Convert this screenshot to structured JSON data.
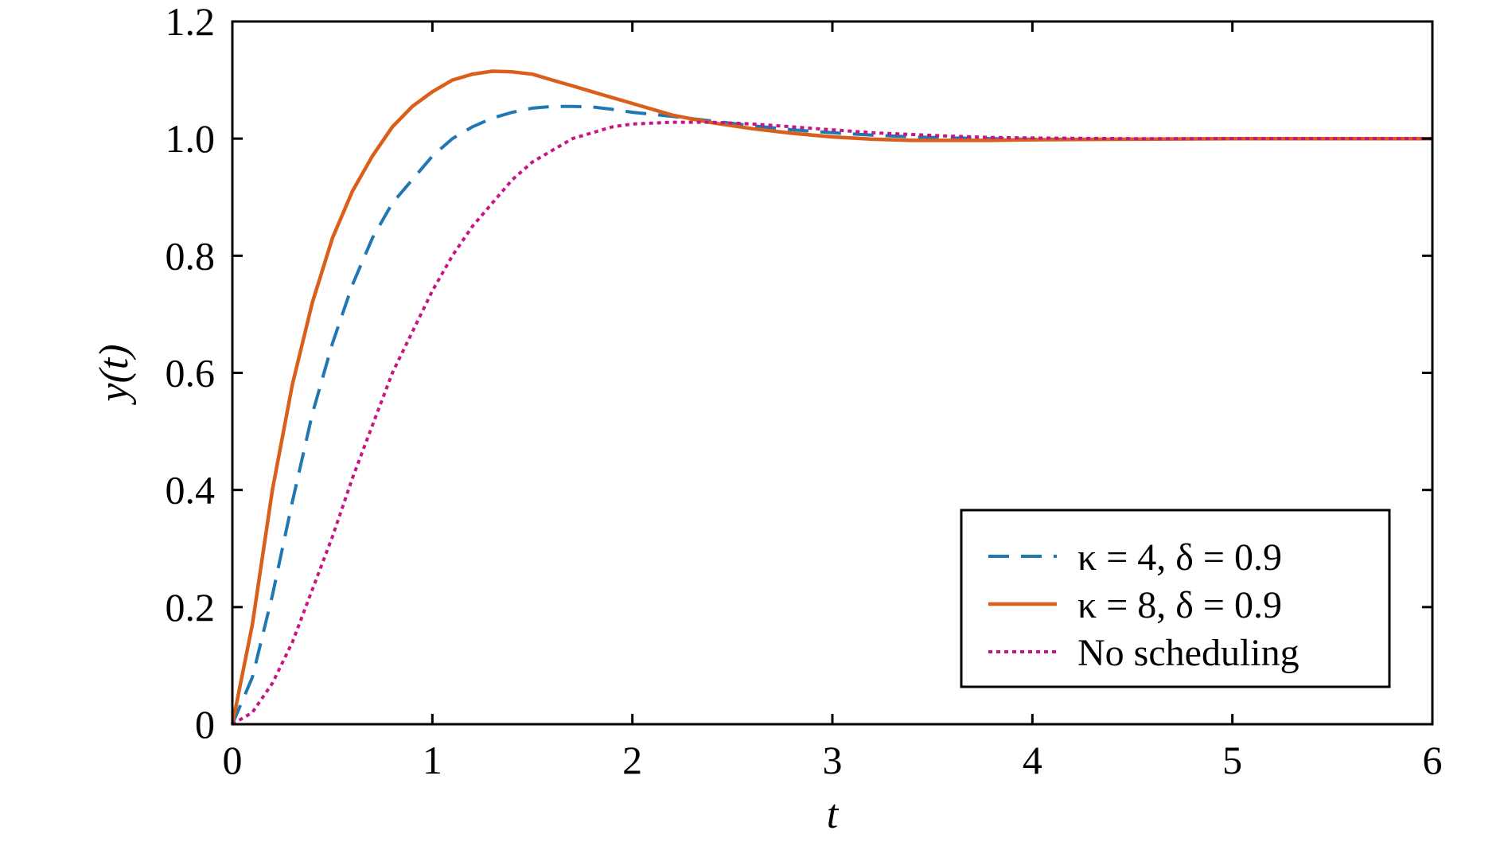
{
  "chart_data": {
    "type": "line",
    "title": "",
    "xlabel": "t",
    "ylabel": "y(t)",
    "xlim": [
      0,
      6
    ],
    "ylim": [
      0,
      1.2
    ],
    "grid": false,
    "legend_position": "bottom-right",
    "x_ticks": [
      0,
      1,
      2,
      3,
      4,
      5,
      6
    ],
    "x_tick_labels": [
      "0",
      "1",
      "2",
      "3",
      "4",
      "5",
      "6"
    ],
    "y_ticks": [
      0,
      0.2,
      0.4,
      0.6,
      0.8,
      1.0,
      1.2
    ],
    "y_tick_labels": [
      "0",
      "0.2",
      "0.4",
      "0.6",
      "0.8",
      "1.0",
      "1.2"
    ],
    "x": [
      0,
      0.1,
      0.2,
      0.3,
      0.4,
      0.5,
      0.6,
      0.7,
      0.8,
      0.9,
      1.0,
      1.1,
      1.2,
      1.3,
      1.4,
      1.5,
      1.6,
      1.7,
      1.8,
      1.9,
      2.0,
      2.2,
      2.4,
      2.6,
      2.8,
      3.0,
      3.2,
      3.4,
      3.6,
      3.8,
      4.0,
      4.5,
      5.0,
      5.5,
      6.0
    ],
    "series": [
      {
        "name": "κ = 4, δ = 0.9",
        "style": "dashed",
        "color": "#1f77b4",
        "values": [
          0,
          0.08,
          0.22,
          0.38,
          0.53,
          0.65,
          0.75,
          0.83,
          0.89,
          0.93,
          0.97,
          1.0,
          1.02,
          1.035,
          1.045,
          1.052,
          1.055,
          1.055,
          1.054,
          1.05,
          1.045,
          1.038,
          1.03,
          1.022,
          1.015,
          1.01,
          1.006,
          1.003,
          1.001,
          1.0,
          0.999,
          0.999,
          1.0,
          1.0,
          1.0
        ]
      },
      {
        "name": "κ = 8, δ = 0.9",
        "style": "solid",
        "color": "#d95f1a",
        "values": [
          0,
          0.17,
          0.4,
          0.58,
          0.72,
          0.83,
          0.91,
          0.97,
          1.02,
          1.055,
          1.08,
          1.1,
          1.11,
          1.115,
          1.114,
          1.11,
          1.1,
          1.09,
          1.08,
          1.07,
          1.06,
          1.04,
          1.027,
          1.017,
          1.009,
          1.003,
          0.999,
          0.997,
          0.997,
          0.997,
          0.998,
          0.999,
          1.0,
          1.0,
          1.0
        ]
      },
      {
        "name": "No scheduling",
        "style": "dotted",
        "color": "#c71585",
        "values": [
          0,
          0.02,
          0.07,
          0.14,
          0.23,
          0.32,
          0.42,
          0.51,
          0.6,
          0.67,
          0.74,
          0.8,
          0.85,
          0.89,
          0.93,
          0.96,
          0.98,
          1.0,
          1.01,
          1.02,
          1.025,
          1.028,
          1.028,
          1.025,
          1.02,
          1.015,
          1.01,
          1.007,
          1.004,
          1.002,
          1.001,
          1.0,
          1.0,
          1.0,
          1.0
        ]
      }
    ]
  }
}
